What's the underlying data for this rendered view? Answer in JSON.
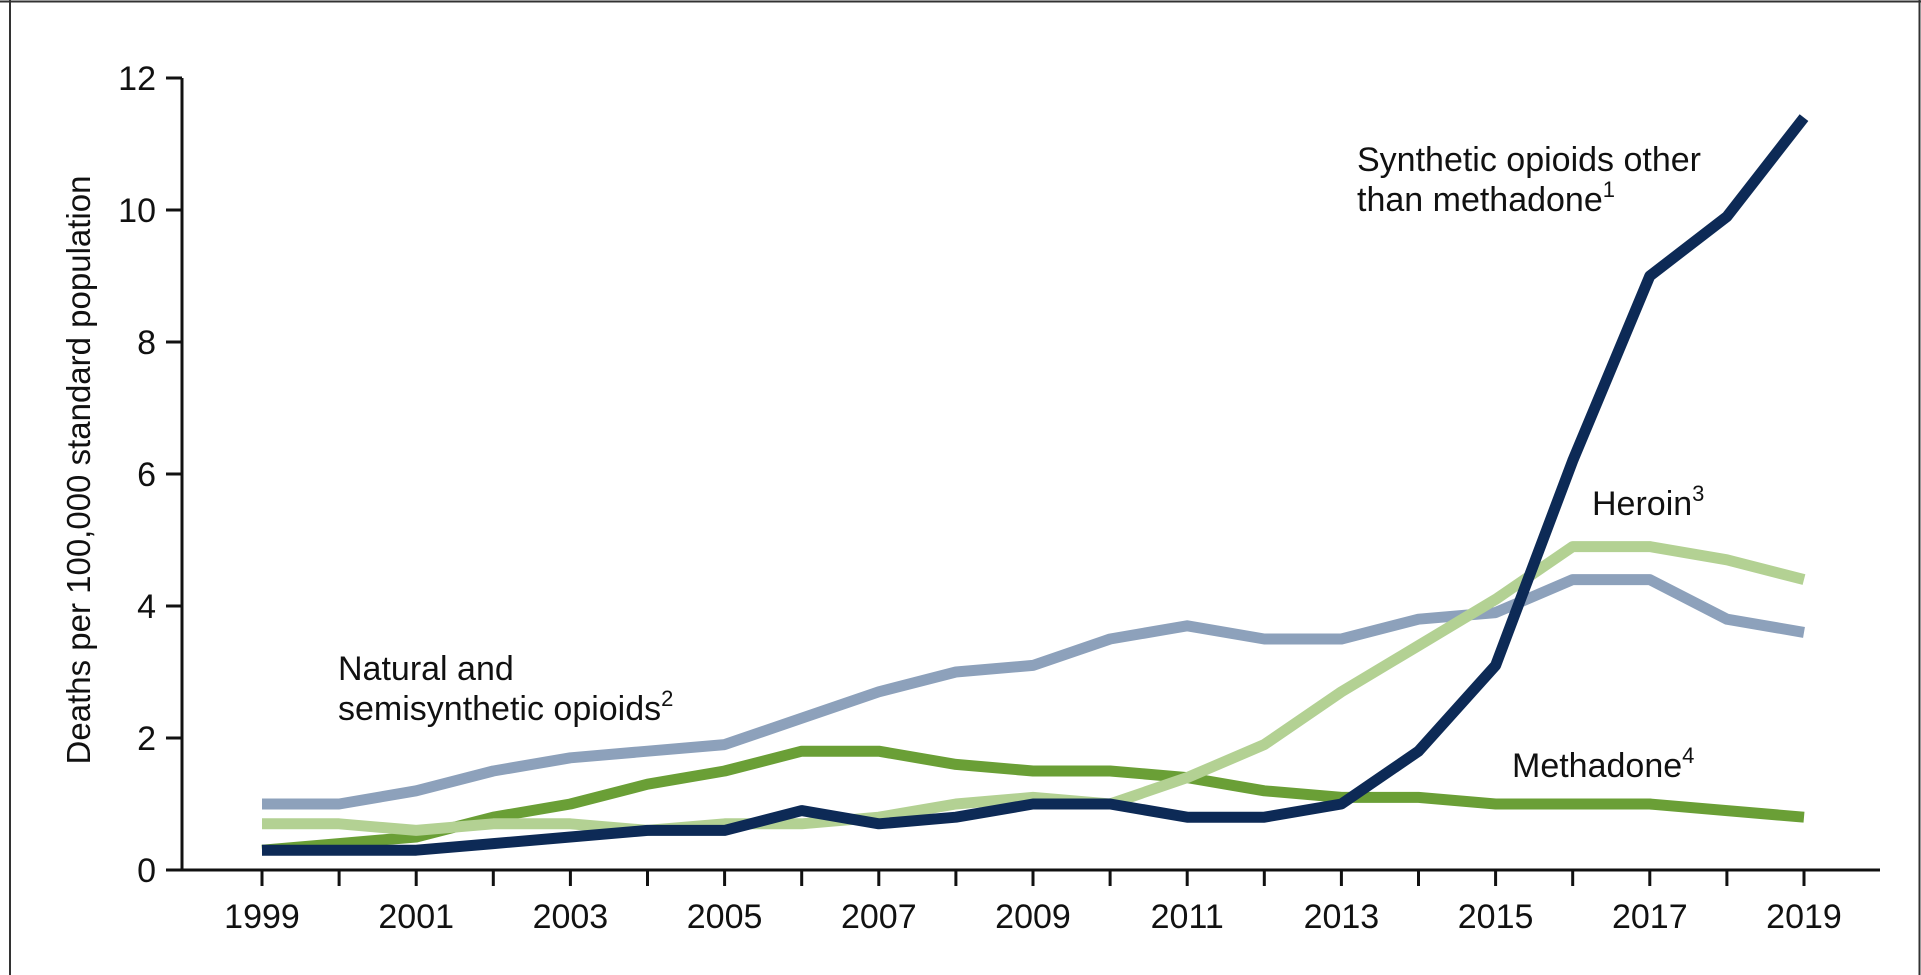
{
  "chart_data": {
    "type": "line",
    "ylabel": "Deaths per 100,000 standard population",
    "xlabel": "",
    "ylim": [
      0,
      12
    ],
    "yticks": [
      "0",
      "2",
      "4",
      "6",
      "8",
      "10",
      "12"
    ],
    "xlim": [
      1999,
      2019
    ],
    "xticks": [
      "1999",
      "2001",
      "2003",
      "2005",
      "2007",
      "2009",
      "2011",
      "2013",
      "2015",
      "2017",
      "2019"
    ],
    "legend": "none",
    "grid": false,
    "x": [
      1999,
      2000,
      2001,
      2002,
      2003,
      2004,
      2005,
      2006,
      2007,
      2008,
      2009,
      2010,
      2011,
      2012,
      2013,
      2014,
      2015,
      2016,
      2017,
      2018,
      2019
    ],
    "series": [
      {
        "key": "natural",
        "color": "#8da1bb",
        "values": [
          1.0,
          1.0,
          1.2,
          1.5,
          1.7,
          1.8,
          1.9,
          2.3,
          2.7,
          3.0,
          3.1,
          3.5,
          3.7,
          3.5,
          3.5,
          3.8,
          3.9,
          4.4,
          4.4,
          3.8,
          3.6
        ]
      },
      {
        "key": "methadone",
        "color": "#6a9f36",
        "values": [
          0.3,
          0.4,
          0.5,
          0.8,
          1.0,
          1.3,
          1.5,
          1.8,
          1.8,
          1.6,
          1.5,
          1.5,
          1.4,
          1.2,
          1.1,
          1.1,
          1.0,
          1.0,
          1.0,
          0.9,
          0.8
        ]
      },
      {
        "key": "heroin",
        "color": "#b3d193",
        "values": [
          0.7,
          0.7,
          0.6,
          0.7,
          0.7,
          0.6,
          0.7,
          0.7,
          0.8,
          1.0,
          1.1,
          1.0,
          1.4,
          1.9,
          2.7,
          3.4,
          4.1,
          4.9,
          4.9,
          4.7,
          4.4
        ]
      },
      {
        "key": "synthetic",
        "color": "#0d2a56",
        "values": [
          0.3,
          0.3,
          0.3,
          0.4,
          0.5,
          0.6,
          0.6,
          0.9,
          0.7,
          0.8,
          1.0,
          1.0,
          0.8,
          0.8,
          1.0,
          1.8,
          3.1,
          6.2,
          9.0,
          9.9,
          11.4
        ]
      }
    ],
    "annotations": {
      "synthetic_line1": "Synthetic opioids other",
      "synthetic_line2": "than methadone",
      "synthetic_sup": "1",
      "natural_line1": "Natural and",
      "natural_line2": "semisynthetic opioids",
      "natural_sup": "2",
      "heroin": "Heroin",
      "heroin_sup": "3",
      "methadone": "Methadone",
      "methadone_sup": "4"
    }
  }
}
